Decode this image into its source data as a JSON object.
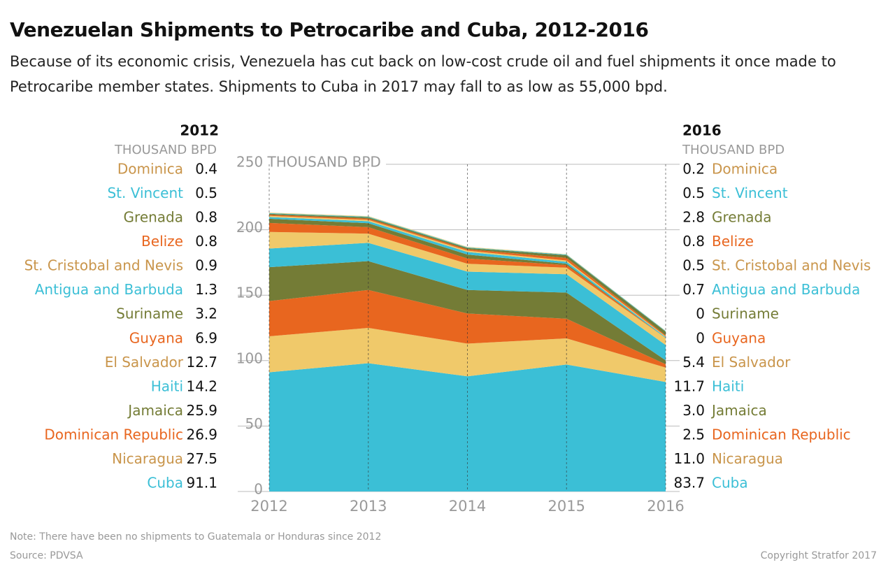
{
  "chart_data": {
    "type": "stacked_area",
    "title": "Venezuelan Shipments to Petrocaribe and Cuba, 2012-2016",
    "subtitle": "Because of its economic crisis, Venezuela has cut back on low-cost crude oil and fuel shipments it once made to Petrocaribe member states. Shipments to Cuba in 2017 may fall to as low as 55,000 bpd.",
    "unit_label": "THOUSAND BPD",
    "categories": [
      "2012",
      "2013",
      "2014",
      "2015",
      "2016"
    ],
    "ylim": [
      0,
      250
    ],
    "yticks": [
      0,
      50,
      100,
      150,
      200,
      {
        "value": 250,
        "label": "250 THOUSAND BPD"
      }
    ],
    "grid": true,
    "series": [
      {
        "name": "Cuba",
        "color": "#3bbfd6",
        "label_color": "#3bbfd6",
        "values": [
          91.1,
          98,
          88,
          97,
          83.7
        ]
      },
      {
        "name": "Nicaragua",
        "color": "#f0c96a",
        "label_color": "#c9954b",
        "values": [
          27.5,
          27,
          25,
          20,
          11.0
        ],
        "value_labels": [
          "27.5",
          null,
          null,
          null,
          "11.0"
        ]
      },
      {
        "name": "Dominican Republic",
        "color": "#e8661f",
        "label_color": "#e8661f",
        "values": [
          26.9,
          29,
          23,
          15,
          2.5
        ]
      },
      {
        "name": "Jamaica",
        "color": "#747c36",
        "label_color": "#747c36",
        "values": [
          25.9,
          22,
          18,
          20,
          3.0
        ],
        "value_labels": [
          "25.9",
          null,
          null,
          null,
          "3.0"
        ]
      },
      {
        "name": "Haiti",
        "color": "#3bbfd6",
        "label_color": "#3bbfd6",
        "values": [
          14.2,
          14,
          14,
          14,
          11.7
        ]
      },
      {
        "name": "El Salvador",
        "color": "#f0c96a",
        "label_color": "#c9954b",
        "values": [
          12.7,
          7,
          6,
          5,
          5.4
        ]
      },
      {
        "name": "Guyana",
        "color": "#e8661f",
        "label_color": "#e8661f",
        "values": [
          6.9,
          5,
          4,
          2,
          0
        ]
      },
      {
        "name": "Suriname",
        "color": "#747c36",
        "label_color": "#747c36",
        "values": [
          3.2,
          3,
          3,
          1,
          0
        ]
      },
      {
        "name": "Antigua and Barbuda",
        "color": "#3bbfd6",
        "label_color": "#3bbfd6",
        "values": [
          1.3,
          1.5,
          2,
          1.5,
          0.7
        ]
      },
      {
        "name": "St. Cristobal and Nevis",
        "color": "#f0c96a",
        "label_color": "#c9954b",
        "values": [
          0.9,
          1,
          1,
          1,
          0.5
        ]
      },
      {
        "name": "Belize",
        "color": "#e8661f",
        "label_color": "#e8661f",
        "values": [
          0.8,
          1,
          1,
          2,
          0.8
        ]
      },
      {
        "name": "Grenada",
        "color": "#747c36",
        "label_color": "#747c36",
        "values": [
          0.8,
          1,
          1,
          2,
          2.8
        ]
      },
      {
        "name": "St. Vincent",
        "color": "#3bbfd6",
        "label_color": "#3bbfd6",
        "values": [
          0.5,
          0.5,
          0.5,
          0.5,
          0.5
        ]
      },
      {
        "name": "Dominica",
        "color": "#f0c96a",
        "label_color": "#c9954b",
        "values": [
          0.4,
          0.4,
          0.4,
          0.3,
          0.2
        ]
      }
    ],
    "note": "Note: There have been no shipments to Guatemala or Honduras since 2012",
    "source": "Source: PDVSA",
    "copyright": "Copyright Stratfor 2017"
  }
}
